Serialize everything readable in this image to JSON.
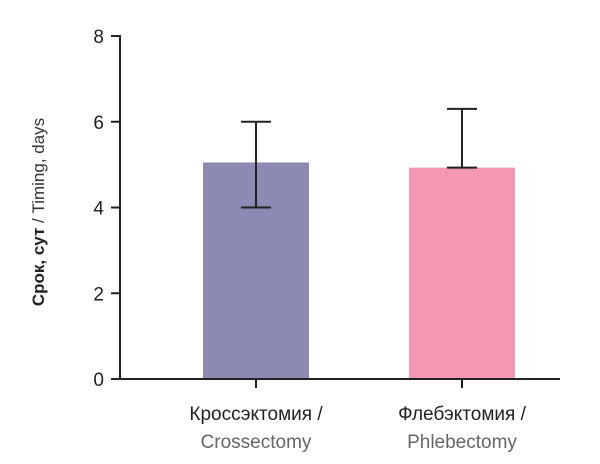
{
  "chart_data": {
    "type": "bar",
    "ylabel": {
      "part1": "Срок, сут",
      "part2": " / Timing, days"
    },
    "ylim": [
      0,
      8
    ],
    "yticks": [
      "0",
      "2",
      "4",
      "6",
      "8"
    ],
    "categories": [
      {
        "line1": "Кроссэктомия /",
        "line2": "Crossectomy"
      },
      {
        "line1": "Флебэктомия /",
        "line2": "Phlebectomy"
      }
    ],
    "values": [
      5.05,
      4.93
    ],
    "error_bars": [
      {
        "low": 4.0,
        "high": 6.0
      },
      {
        "low": 4.93,
        "high": 6.3
      }
    ],
    "colors": [
      "#8c89b3",
      "#f497b2"
    ],
    "grid": false
  }
}
